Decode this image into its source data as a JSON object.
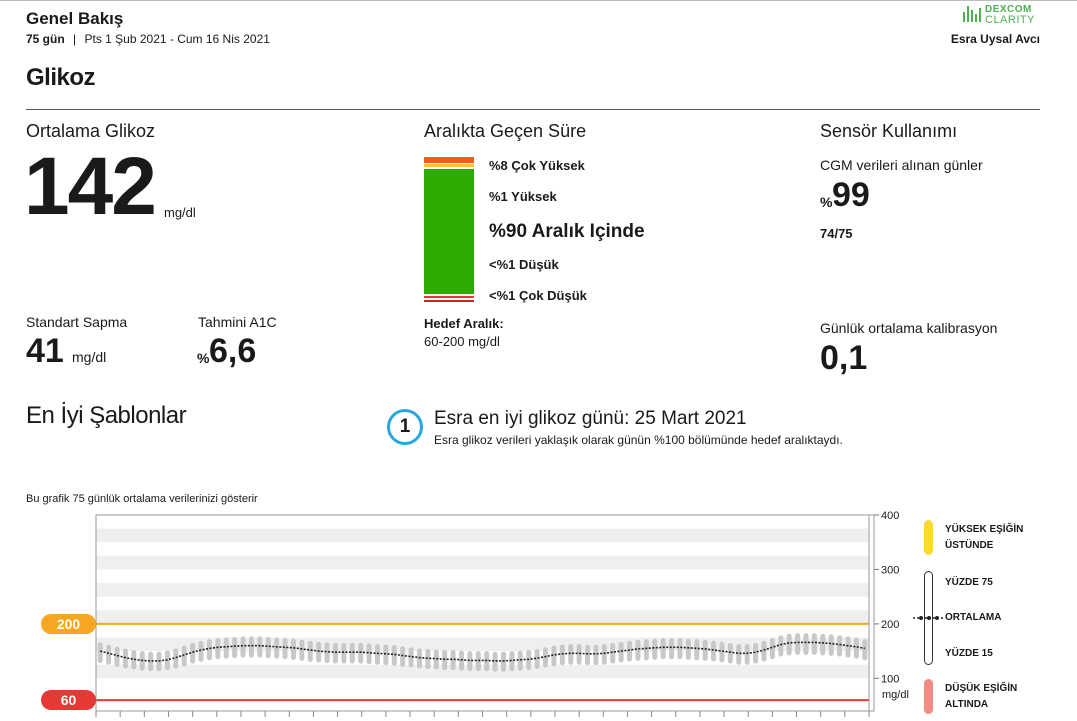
{
  "header": {
    "title": "Genel Bakış",
    "days": "75 gün",
    "separator": "|",
    "range": "Pts 1 Şub 2021 - Cum 16 Nis 2021",
    "brand_top": "DEXCOM",
    "brand_bottom": "CLARITY",
    "user": "Esra Uysal Avcı"
  },
  "section_title": "Glikoz",
  "avg_glucose": {
    "label": "Ortalama Glikoz",
    "value": "142",
    "unit": "mg/dl"
  },
  "std_dev": {
    "label": "Standart Sapma",
    "value": "41",
    "unit": "mg/dl"
  },
  "a1c": {
    "label": "Tahmini A1C",
    "prefix": "%",
    "value": "6,6"
  },
  "time_in_range": {
    "label": "Aralıkta Geçen Süre",
    "very_high": "%8 Çok Yüksek",
    "high": "%1 Yüksek",
    "in_range": "%90 Aralık Içinde",
    "low": "<%1 Düşük",
    "very_low": "<%1 Çok Düşük",
    "target_label": "Hedef Aralık:",
    "target_value": "60-200 mg/dl",
    "very_high_pct": 8,
    "high_pct": 1,
    "in_range_pct": 90,
    "low_pct": 0.5,
    "very_low_pct": 0.5,
    "colors": {
      "very_high": "#f05a24",
      "high": "#fbc02d",
      "in_range": "#2eaa00",
      "low": "#e53935",
      "very_low": "#c62828"
    }
  },
  "sensor": {
    "label": "Sensör Kullanımı",
    "cgm_label": "CGM verileri alınan günler",
    "cgm_prefix": "%",
    "cgm_value": "99",
    "cgm_days": "74/75",
    "calib_label": "Günlük ortalama kalibrasyon",
    "calib_value": "0,1"
  },
  "best_patterns": {
    "title": "En İyi Şablonlar",
    "badge": "1",
    "headline": "Esra en iyi glikoz günü: 25 Mart 2021",
    "description": "Esra glikoz verileri yaklaşık olarak günün %100 bölümünde hedef aralıktaydı."
  },
  "chart_caption": "Bu grafik 75 günlük ortalama verilerinizi gösterir",
  "chart_data": {
    "type": "line",
    "ylim": [
      40,
      400
    ],
    "yticks": [
      "400",
      "300",
      "200",
      "100"
    ],
    "ytick_values": [
      400,
      300,
      200,
      100
    ],
    "yunit": "mg/dl",
    "high_threshold": 200,
    "low_threshold": 60,
    "high_label": "200",
    "low_label": "60",
    "series": [
      {
        "name": "ORTALAMA",
        "values": [
          150,
          146,
          142,
          138,
          135,
          133,
          132,
          132,
          134,
          138,
          143,
          148,
          152,
          155,
          157,
          158,
          159,
          160,
          160,
          160,
          159,
          158,
          157,
          156,
          154,
          152,
          150,
          149,
          148,
          148,
          148,
          148,
          147,
          146,
          145,
          144,
          142,
          140,
          138,
          137,
          136,
          135,
          135,
          134,
          133,
          133,
          133,
          132,
          132,
          133,
          134,
          135,
          137,
          140,
          143,
          145,
          146,
          146,
          145,
          145,
          146,
          148,
          150,
          152,
          154,
          155,
          156,
          157,
          157,
          157,
          156,
          155,
          154,
          152,
          150,
          148,
          146,
          146,
          148,
          152,
          157,
          162,
          165,
          166,
          166,
          166,
          165,
          164,
          162,
          160,
          158,
          155
        ]
      }
    ],
    "p75": [
      166,
      162,
      158,
      155,
      152,
      150,
      149,
      149,
      151,
      155,
      160,
      165,
      169,
      172,
      174,
      175,
      176,
      177,
      177,
      177,
      176,
      175,
      174,
      173,
      171,
      169,
      167,
      166,
      165,
      165,
      165,
      165,
      164,
      163,
      162,
      161,
      159,
      157,
      155,
      154,
      153,
      152,
      152,
      151,
      150,
      150,
      150,
      149,
      149,
      150,
      151,
      152,
      154,
      157,
      160,
      162,
      163,
      163,
      162,
      162,
      163,
      165,
      167,
      169,
      171,
      172,
      173,
      174,
      174,
      174,
      173,
      172,
      171,
      169,
      167,
      165,
      163,
      163,
      165,
      169,
      174,
      179,
      182,
      183,
      183,
      183,
      182,
      181,
      179,
      177,
      175,
      172
    ],
    "p25": [
      128,
      125,
      121,
      118,
      116,
      114,
      113,
      113,
      115,
      118,
      122,
      127,
      130,
      133,
      135,
      136,
      137,
      138,
      138,
      138,
      137,
      136,
      135,
      134,
      132,
      130,
      129,
      128,
      127,
      127,
      127,
      127,
      126,
      125,
      124,
      123,
      121,
      120,
      118,
      117,
      116,
      115,
      115,
      114,
      113,
      113,
      113,
      112,
      112,
      113,
      114,
      115,
      117,
      120,
      122,
      124,
      125,
      125,
      124,
      124,
      125,
      127,
      129,
      131,
      132,
      133,
      134,
      135,
      135,
      135,
      134,
      133,
      132,
      131,
      129,
      127,
      125,
      125,
      127,
      131,
      135,
      140,
      142,
      143,
      143,
      143,
      142,
      141,
      140,
      138,
      136,
      133
    ],
    "legend": {
      "high_title_1": "YÜKSEK EŞİĞİN",
      "high_title_2": "ÜSTÜNDE",
      "p75": "YÜZDE 75",
      "mean": "ORTALAMA",
      "p15": "YÜZDE 15",
      "low_title_1": "DÜŞÜK EŞİĞİN",
      "low_title_2": "ALTINDA"
    },
    "colors": {
      "high": "#fdd835",
      "target_line": "#f5a623",
      "low_line": "#e53935",
      "band": "#c8c8c8",
      "mean": "#222222",
      "low_legend": "#f28b82"
    }
  }
}
